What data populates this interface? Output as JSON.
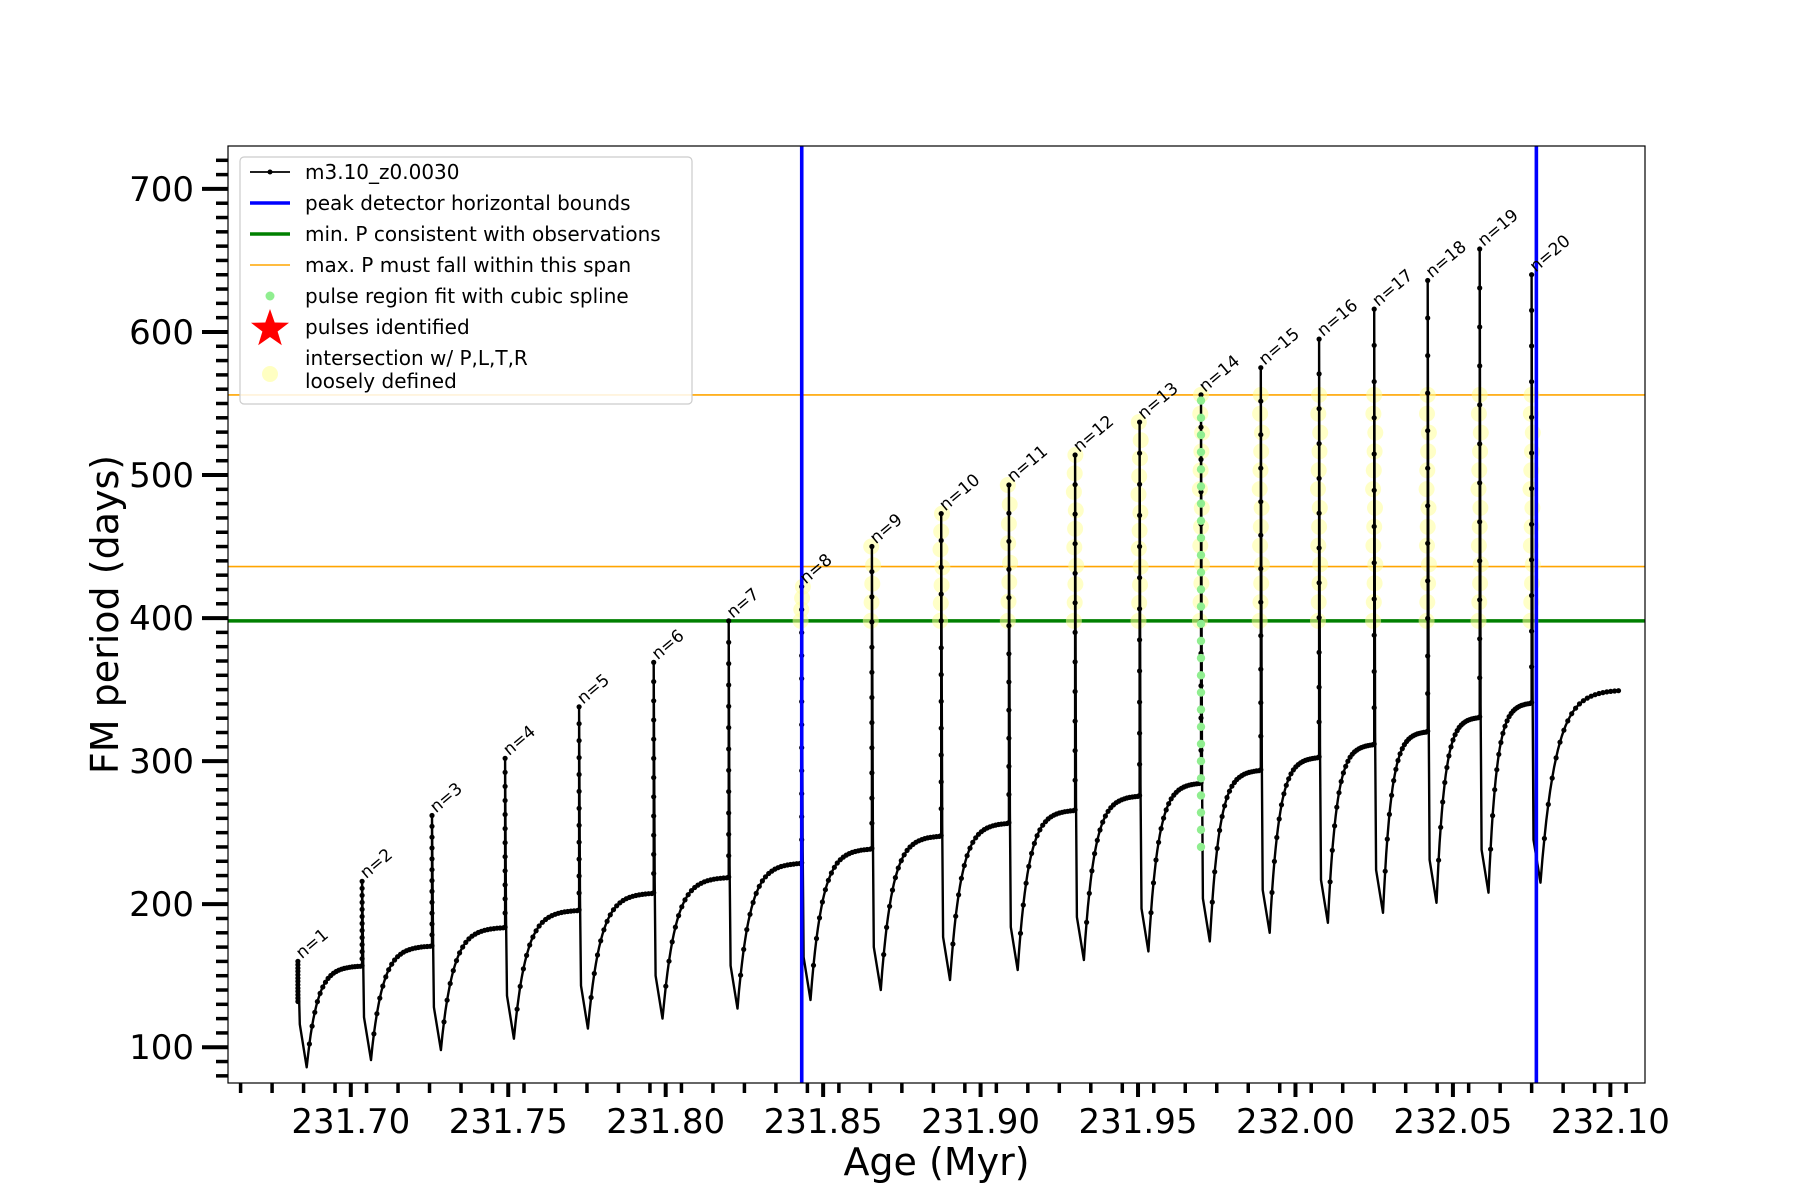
{
  "chart_data": {
    "type": "line",
    "xlabel": "Age (Myr)",
    "ylabel": "FM period (days)",
    "xlim": [
      231.661,
      232.111
    ],
    "ylim": [
      75,
      730
    ],
    "xticks": [
      231.7,
      231.75,
      231.8,
      231.85,
      231.9,
      231.95,
      232.0,
      232.05,
      232.1
    ],
    "xtick_labels": [
      "231.70",
      "231.75",
      "231.80",
      "231.85",
      "231.90",
      "231.95",
      "232.00",
      "232.05",
      "232.10"
    ],
    "yticks": [
      100,
      200,
      300,
      400,
      500,
      600,
      700
    ],
    "ytick_labels": [
      "100",
      "200",
      "300",
      "400",
      "500",
      "600",
      "700"
    ],
    "grid": false,
    "legend_position": "top-left",
    "legend": [
      {
        "label": "m3.10_z0.0030",
        "kind": "line-marker",
        "color": "#000000"
      },
      {
        "label": "peak detector horizontal bounds",
        "kind": "line",
        "color": "#0000ff"
      },
      {
        "label": "min. P consistent with observations",
        "kind": "line",
        "color": "#008000"
      },
      {
        "label": "max. P must fall within this span",
        "kind": "thin-line",
        "color": "#ffa500"
      },
      {
        "label": "pulse region fit with cubic spline",
        "kind": "dot",
        "color": "#90ee90"
      },
      {
        "label": "pulses identified",
        "kind": "star",
        "color": "#ff0000"
      },
      {
        "label": "intersection w/ P,L,T,R",
        "label2": "loosely defined",
        "kind": "circle",
        "color": "#ffff99"
      }
    ],
    "vertical_lines": [
      {
        "x": 231.8432,
        "color": "#0000ff"
      },
      {
        "x": 232.0765,
        "color": "#0000ff"
      }
    ],
    "horizontal_lines": [
      {
        "y": 398,
        "color": "#008000",
        "width": "thick"
      },
      {
        "y": 436,
        "color": "#ffa500",
        "width": "thin"
      },
      {
        "y": 556,
        "color": "#ffa500",
        "width": "thin"
      }
    ],
    "series": [
      {
        "name": "m3.10_z0.0030",
        "color": "#000000",
        "pulses": [
          {
            "n": 1,
            "label": "n=1",
            "age": 231.6832,
            "peak": 160,
            "min": 86,
            "end_level": 157
          },
          {
            "n": 2,
            "label": "n=2",
            "age": 231.7036,
            "peak": 216,
            "min": 91,
            "end_level": 171
          },
          {
            "n": 3,
            "label": "n=3",
            "age": 231.7258,
            "peak": 262,
            "min": 98,
            "end_level": 184
          },
          {
            "n": 4,
            "label": "n=4",
            "age": 231.749,
            "peak": 302,
            "min": 106,
            "end_level": 196
          },
          {
            "n": 5,
            "label": "n=5",
            "age": 231.7725,
            "peak": 338,
            "min": 113,
            "end_level": 208
          },
          {
            "n": 6,
            "label": "n=6",
            "age": 231.7962,
            "peak": 369,
            "min": 120,
            "end_level": 219
          },
          {
            "n": 7,
            "label": "n=7",
            "age": 231.82,
            "peak": 398,
            "min": 127,
            "end_level": 229
          },
          {
            "n": 8,
            "label": "n=8",
            "age": 231.8432,
            "peak": 422,
            "min": 133,
            "end_level": 239
          },
          {
            "n": 9,
            "label": "n=9",
            "age": 231.8655,
            "peak": 450,
            "min": 140,
            "end_level": 248
          },
          {
            "n": 10,
            "label": "n=10",
            "age": 231.8875,
            "peak": 473,
            "min": 147,
            "end_level": 257
          },
          {
            "n": 11,
            "label": "n=11",
            "age": 231.909,
            "peak": 493,
            "min": 154,
            "end_level": 266
          },
          {
            "n": 12,
            "label": "n=12",
            "age": 231.93,
            "peak": 514,
            "min": 161,
            "end_level": 276
          },
          {
            "n": 13,
            "label": "n=13",
            "age": 231.9505,
            "peak": 537,
            "min": 167,
            "end_level": 285
          },
          {
            "n": 14,
            "label": "n=14",
            "age": 231.97,
            "peak": 556,
            "min": 174,
            "end_level": 294
          },
          {
            "n": 15,
            "label": "n=15",
            "age": 231.989,
            "peak": 575,
            "min": 180,
            "end_level": 303
          },
          {
            "n": 16,
            "label": "n=16",
            "age": 232.0075,
            "peak": 595,
            "min": 187,
            "end_level": 312
          },
          {
            "n": 17,
            "label": "n=17",
            "age": 232.025,
            "peak": 616,
            "min": 194,
            "end_level": 321
          },
          {
            "n": 18,
            "label": "n=18",
            "age": 232.042,
            "peak": 636,
            "min": 201,
            "end_level": 331
          },
          {
            "n": 19,
            "label": "n=19",
            "age": 232.0585,
            "peak": 658,
            "min": 208,
            "end_level": 341
          },
          {
            "n": 20,
            "label": "n=20",
            "age": 232.075,
            "peak": 640,
            "min": 215,
            "end_level": 350
          }
        ],
        "end_age": 232.1032
      }
    ],
    "spline_fit_pulse": 14,
    "intersection_band": [
      398,
      556
    ]
  }
}
